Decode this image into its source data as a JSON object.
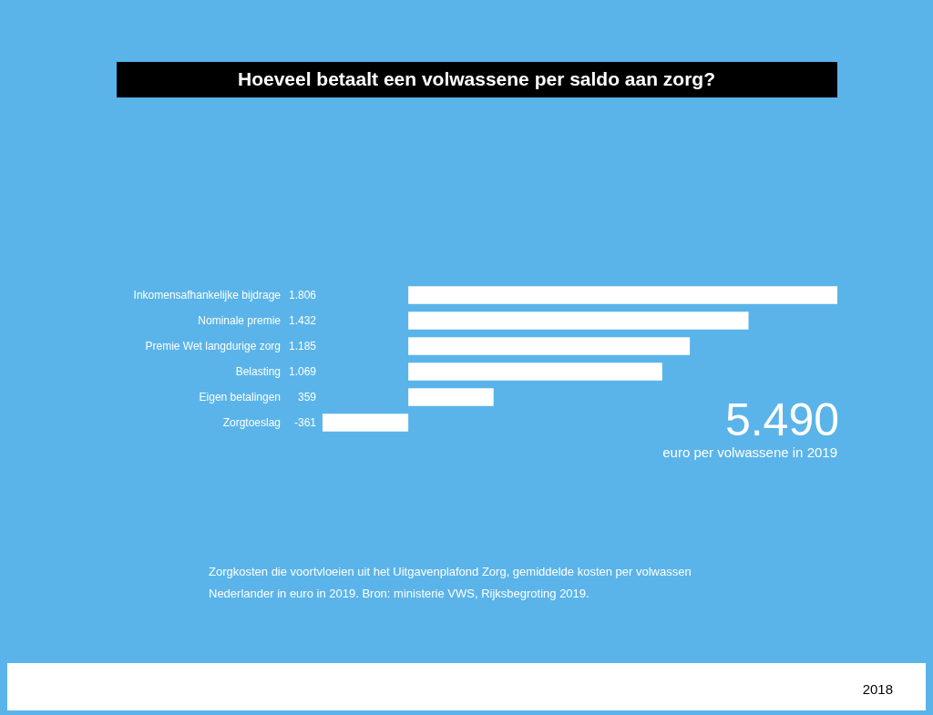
{
  "chart_data": {
    "type": "bar",
    "orientation": "horizontal",
    "title": "Hoeveel betaalt een volwassene per saldo aan zorg?",
    "categories": [
      "Inkomensafhankelijke bijdrage",
      "Nominale premie",
      "Premie Wet langdurige zorg",
      "Belasting",
      "Eigen betalingen",
      "Zorgtoeslag"
    ],
    "values": [
      1806,
      1432,
      1185,
      1069,
      359,
      -361
    ],
    "value_labels": [
      "1.806",
      "1.432",
      "1.185",
      "1.069",
      "359",
      "-361"
    ],
    "color": "#ffffff",
    "annotations": [
      "5.490",
      "euro per volwassene in 2019",
      "Zorgkosten die voortvloeien uit het Uitgavenplafond Zorg, gemiddelde kosten per volwassen Nederlander in euro in 2019. Bron: ministerie VWS, Rijksbegroting 2019.",
      "2018"
    ]
  }
}
